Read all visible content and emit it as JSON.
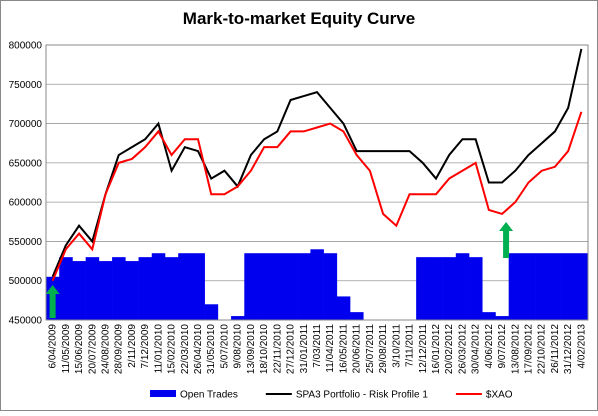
{
  "chart_data": {
    "type": "bar-line",
    "title": "Mark-to-market Equity Curve",
    "categories": [
      "6/04/2009",
      "11/05/2009",
      "15/06/2009",
      "20/07/2009",
      "24/08/2009",
      "28/09/2009",
      "2/11/2009",
      "7/12/2009",
      "11/01/2010",
      "15/02/2010",
      "22/03/2010",
      "26/04/2010",
      "31/05/2010",
      "5/07/2010",
      "9/08/2010",
      "13/09/2010",
      "18/10/2010",
      "22/11/2010",
      "27/12/2010",
      "31/01/2011",
      "7/03/2011",
      "11/04/2011",
      "16/05/2011",
      "20/06/2011",
      "25/07/2011",
      "29/08/2011",
      "3/10/2011",
      "7/11/2011",
      "12/12/2011",
      "16/01/2012",
      "20/02/2012",
      "26/03/2012",
      "30/04/2012",
      "4/06/2012",
      "9/07/2012",
      "13/08/2012",
      "17/09/2012",
      "22/10/2012",
      "26/11/2012",
      "31/12/2012",
      "4/02/2013"
    ],
    "series": [
      {
        "name": "Open Trades",
        "type": "bar",
        "color": "#0000ee",
        "values": [
          505000,
          530000,
          525000,
          530000,
          525000,
          530000,
          525000,
          530000,
          535000,
          530000,
          535000,
          535000,
          470000,
          450000,
          455000,
          535000,
          535000,
          535000,
          535000,
          535000,
          540000,
          535000,
          480000,
          460000,
          450000,
          450000,
          450000,
          450000,
          530000,
          530000,
          530000,
          535000,
          530000,
          460000,
          455000,
          535000,
          535000,
          535000,
          535000,
          535000,
          535000
        ]
      },
      {
        "name": "SPA3 Portfolio - Risk Profile 1",
        "type": "line",
        "color": "#000000",
        "values": [
          505000,
          545000,
          570000,
          550000,
          610000,
          660000,
          670000,
          680000,
          700000,
          640000,
          670000,
          665000,
          630000,
          640000,
          620000,
          660000,
          680000,
          690000,
          730000,
          735000,
          740000,
          720000,
          700000,
          665000,
          665000,
          665000,
          665000,
          665000,
          650000,
          630000,
          660000,
          680000,
          680000,
          625000,
          625000,
          640000,
          660000,
          675000,
          690000,
          720000,
          795000
        ]
      },
      {
        "name": "$XAO",
        "type": "line",
        "color": "#ff0000",
        "values": [
          500000,
          540000,
          560000,
          540000,
          610000,
          650000,
          655000,
          670000,
          690000,
          660000,
          680000,
          680000,
          610000,
          610000,
          620000,
          640000,
          670000,
          670000,
          690000,
          690000,
          695000,
          700000,
          690000,
          660000,
          640000,
          585000,
          570000,
          610000,
          610000,
          610000,
          630000,
          640000,
          650000,
          590000,
          585000,
          600000,
          625000,
          640000,
          645000,
          665000,
          715000
        ]
      }
    ],
    "ylim": [
      450000,
      800000
    ],
    "yticks": [
      450000,
      500000,
      550000,
      600000,
      650000,
      700000,
      750000,
      800000
    ],
    "grid": true
  }
}
